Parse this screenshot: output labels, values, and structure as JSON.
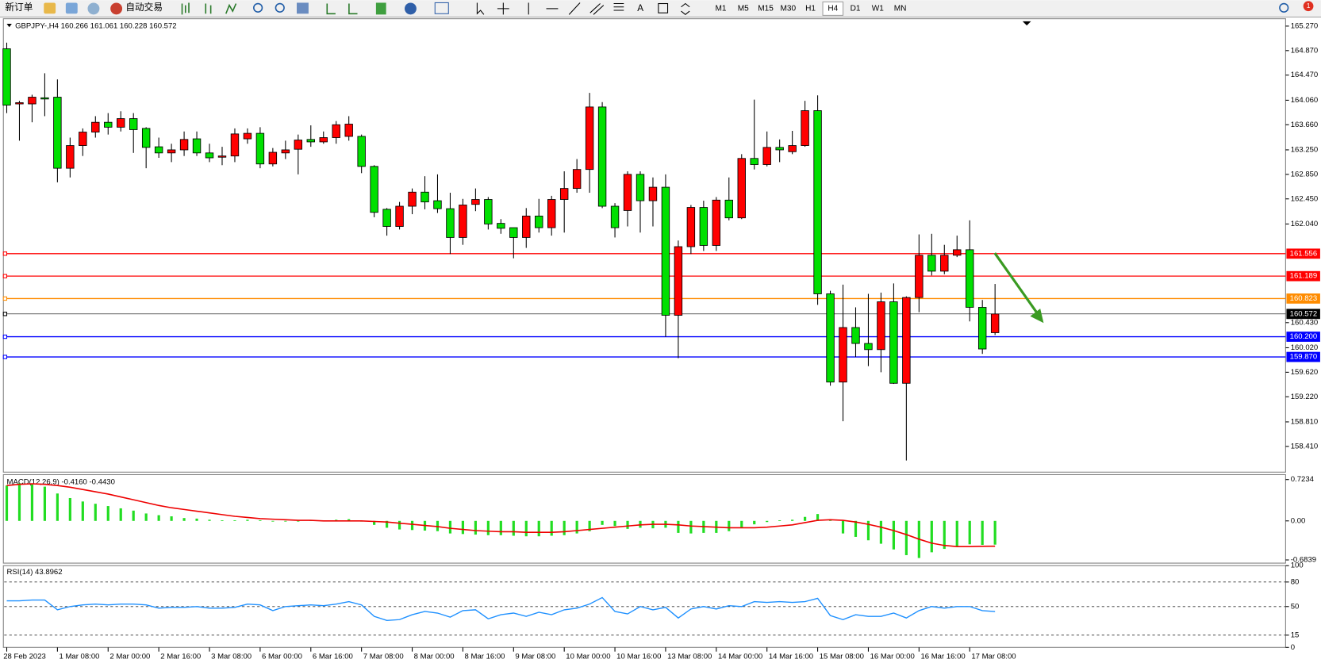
{
  "toolbar": {
    "buttons": [
      "新订单",
      "自动交易"
    ],
    "timeframes": [
      "M1",
      "M5",
      "M15",
      "M30",
      "H1",
      "H4",
      "D1",
      "W1",
      "MN"
    ],
    "notifications": "1"
  },
  "chart_data": [
    {
      "type": "candlestick",
      "title": "GBPJPY-,H4 160.266 161.061 160.228 160.572",
      "up_color": "#ff0000",
      "down_color": "#00e000",
      "open": [
        164.9,
        164.0,
        164.0,
        164.1,
        164.11,
        162.95,
        163.32,
        163.54,
        163.7,
        163.62,
        163.76,
        163.6,
        163.3,
        163.2,
        163.25,
        163.43,
        163.2,
        163.13,
        163.15,
        163.43,
        163.52,
        163.02,
        163.2,
        163.26,
        163.42,
        163.38,
        163.45,
        163.47,
        163.47,
        162.98,
        162.28,
        162.0,
        162.33,
        162.56,
        162.42,
        162.29,
        161.82,
        162.36,
        162.44,
        162.05,
        161.98,
        161.82,
        162.17,
        161.98,
        162.44,
        162.62,
        162.93,
        163.95,
        162.33,
        162.26,
        162.85,
        162.42,
        162.64,
        160.55,
        161.67,
        162.31,
        161.69,
        162.43,
        162.14,
        163.11,
        163.01,
        163.29,
        163.22,
        163.32,
        163.89,
        160.9,
        159.46,
        160.35,
        160.09,
        159.99,
        160.77,
        159.44,
        160.84,
        161.53,
        161.27,
        161.53,
        161.62,
        160.68,
        160.266
      ],
      "high": [
        165.0,
        164.05,
        164.15,
        164.5,
        164.4,
        163.45,
        163.6,
        163.8,
        163.85,
        163.88,
        163.85,
        163.62,
        163.45,
        163.35,
        163.55,
        163.55,
        163.35,
        163.3,
        163.6,
        163.6,
        163.62,
        163.28,
        163.4,
        163.5,
        163.65,
        163.55,
        163.72,
        163.8,
        163.5,
        163.0,
        162.3,
        162.4,
        162.62,
        162.82,
        162.85,
        162.55,
        162.45,
        162.62,
        162.48,
        162.12,
        161.98,
        162.3,
        162.45,
        162.5,
        162.9,
        163.1,
        164.18,
        164.03,
        162.38,
        162.9,
        162.9,
        162.8,
        162.85,
        161.77,
        162.35,
        162.42,
        162.48,
        162.8,
        163.18,
        164.07,
        163.55,
        163.42,
        163.56,
        164.05,
        164.14,
        160.95,
        161.05,
        160.68,
        160.9,
        160.92,
        161.07,
        160.86,
        161.87,
        161.88,
        161.7,
        161.85,
        162.1,
        160.8,
        161.061
      ],
      "low": [
        163.85,
        163.4,
        163.7,
        163.8,
        162.72,
        162.8,
        163.15,
        163.45,
        163.5,
        163.55,
        163.2,
        162.95,
        163.12,
        163.05,
        163.15,
        163.15,
        163.05,
        163.0,
        163.05,
        163.35,
        162.95,
        162.98,
        163.1,
        162.85,
        163.3,
        163.35,
        163.35,
        163.4,
        162.87,
        162.15,
        161.85,
        161.95,
        162.2,
        162.28,
        162.22,
        161.55,
        161.7,
        162.25,
        161.95,
        161.88,
        161.48,
        161.65,
        161.9,
        161.85,
        161.9,
        162.55,
        162.55,
        162.3,
        161.82,
        162.0,
        161.9,
        162.0,
        160.2,
        159.85,
        161.55,
        161.6,
        161.6,
        162.1,
        162.12,
        162.93,
        162.98,
        163.05,
        163.18,
        163.3,
        160.72,
        159.4,
        158.82,
        159.87,
        159.72,
        159.62,
        159.43,
        158.18,
        160.6,
        161.2,
        161.22,
        161.5,
        160.45,
        159.92,
        160.228
      ],
      "close": [
        163.98,
        164.02,
        164.11,
        164.08,
        162.95,
        163.32,
        163.54,
        163.7,
        163.62,
        163.76,
        163.58,
        163.29,
        163.2,
        163.25,
        163.42,
        163.2,
        163.12,
        163.15,
        163.51,
        163.52,
        163.02,
        163.21,
        163.25,
        163.41,
        163.38,
        163.45,
        163.66,
        163.67,
        162.98,
        162.23,
        162.0,
        162.33,
        162.56,
        162.4,
        162.29,
        161.82,
        162.35,
        162.44,
        162.04,
        161.97,
        161.82,
        162.17,
        161.98,
        162.44,
        162.62,
        162.93,
        163.95,
        162.33,
        161.98,
        162.85,
        162.42,
        162.64,
        160.55,
        161.67,
        162.31,
        161.69,
        162.43,
        162.14,
        163.11,
        163.01,
        163.29,
        163.25,
        163.32,
        163.89,
        160.9,
        159.46,
        160.35,
        160.09,
        159.99,
        160.77,
        159.44,
        160.84,
        161.53,
        161.27,
        161.53,
        161.62,
        160.68,
        160.0,
        160.572
      ],
      "ylim": [
        157.99,
        165.39
      ],
      "yticks": [
        {
          "value": 165.27,
          "label": "165.270"
        },
        {
          "value": 164.87,
          "label": "164.870"
        },
        {
          "value": 164.47,
          "label": "164.470"
        },
        {
          "value": 164.06,
          "label": "164.060"
        },
        {
          "value": 163.66,
          "label": "163.660"
        },
        {
          "value": 163.25,
          "label": "163.250"
        },
        {
          "value": 162.85,
          "label": "162.850"
        },
        {
          "value": 162.45,
          "label": "162.450"
        },
        {
          "value": 162.04,
          "label": "162.040"
        },
        {
          "value": 160.43,
          "label": "160.430"
        },
        {
          "value": 160.02,
          "label": "160.020"
        },
        {
          "value": 159.62,
          "label": "159.620"
        },
        {
          "value": 159.22,
          "label": "159.220"
        },
        {
          "value": 158.81,
          "label": "158.810"
        },
        {
          "value": 158.41,
          "label": "158.410"
        }
      ],
      "levels": [
        {
          "value": 161.556,
          "label": "161.556",
          "color": "#ff0000"
        },
        {
          "value": 161.189,
          "label": "161.189",
          "color": "#ff0000"
        },
        {
          "value": 160.823,
          "label": "160.823",
          "color": "#ff8c00"
        },
        {
          "value": 160.572,
          "label": "160.572",
          "color": "#000000"
        },
        {
          "value": 160.2,
          "label": "160.200",
          "color": "#0000ff"
        },
        {
          "value": 159.87,
          "label": "159.870",
          "color": "#0000ff"
        }
      ],
      "x_labels": [
        "28 Feb 2023",
        "1 Mar 08:00",
        "2 Mar 00:00",
        "2 Mar 16:00",
        "3 Mar 08:00",
        "6 Mar 00:00",
        "6 Mar 16:00",
        "7 Mar 08:00",
        "8 Mar 00:00",
        "8 Mar 16:00",
        "9 Mar 08:00",
        "10 Mar 00:00",
        "10 Mar 16:00",
        "13 Mar 08:00",
        "14 Mar 00:00",
        "14 Mar 16:00",
        "15 Mar 08:00",
        "16 Mar 00:00",
        "16 Mar 16:00",
        "17 Mar 08:00"
      ]
    },
    {
      "type": "macd",
      "title": "MACD(12,26,9) -0.4160 -0.4430",
      "histogram": {
        "color": "#22dd22",
        "values": [
          0.62,
          0.66,
          0.64,
          0.6,
          0.48,
          0.4,
          0.34,
          0.3,
          0.26,
          0.22,
          0.18,
          0.13,
          0.1,
          0.08,
          0.05,
          0.04,
          0.02,
          0.01,
          0.01,
          0.02,
          0.01,
          -0.01,
          -0.01,
          0.0,
          0.01,
          0.01,
          0.02,
          0.03,
          0.0,
          -0.07,
          -0.12,
          -0.15,
          -0.16,
          -0.17,
          -0.18,
          -0.22,
          -0.23,
          -0.24,
          -0.25,
          -0.25,
          -0.26,
          -0.27,
          -0.27,
          -0.26,
          -0.25,
          -0.22,
          -0.18,
          -0.07,
          -0.09,
          -0.14,
          -0.12,
          -0.13,
          -0.12,
          -0.21,
          -0.22,
          -0.21,
          -0.21,
          -0.18,
          -0.12,
          -0.06,
          -0.02,
          0.01,
          0.02,
          0.07,
          0.12,
          0.03,
          -0.22,
          -0.28,
          -0.34,
          -0.4,
          -0.5,
          -0.6,
          -0.65,
          -0.55,
          -0.49,
          -0.44,
          -0.41,
          -0.42,
          -0.416
        ]
      },
      "signal": {
        "color": "#ee0000",
        "values": [
          0.62,
          0.64,
          0.65,
          0.64,
          0.62,
          0.59,
          0.55,
          0.51,
          0.47,
          0.42,
          0.37,
          0.32,
          0.27,
          0.23,
          0.2,
          0.17,
          0.14,
          0.11,
          0.08,
          0.06,
          0.04,
          0.03,
          0.02,
          0.01,
          0.01,
          0.0,
          0.0,
          0.0,
          0.0,
          -0.01,
          -0.02,
          -0.04,
          -0.06,
          -0.08,
          -0.1,
          -0.13,
          -0.15,
          -0.17,
          -0.18,
          -0.19,
          -0.19,
          -0.2,
          -0.2,
          -0.2,
          -0.19,
          -0.17,
          -0.15,
          -0.13,
          -0.11,
          -0.09,
          -0.07,
          -0.06,
          -0.06,
          -0.07,
          -0.09,
          -0.1,
          -0.11,
          -0.12,
          -0.12,
          -0.12,
          -0.11,
          -0.09,
          -0.07,
          -0.03,
          0.01,
          0.02,
          0.01,
          -0.02,
          -0.06,
          -0.11,
          -0.17,
          -0.24,
          -0.32,
          -0.39,
          -0.43,
          -0.45,
          -0.45,
          -0.445,
          -0.443
        ]
      },
      "ylim": [
        -0.74,
        0.81
      ],
      "yticks": [
        0.7234,
        {
          "value": 0,
          "label": "0.00"
        },
        -0.6839
      ]
    },
    {
      "type": "line",
      "title": "RSI(14) 43.8962",
      "color": "#1e90ff",
      "values": [
        57,
        57,
        58,
        58,
        46,
        50,
        52,
        53,
        52,
        53,
        53,
        52,
        48,
        49,
        49,
        50,
        48,
        48,
        49,
        53,
        52,
        45,
        50,
        51,
        52,
        51,
        53,
        56,
        52,
        38,
        33,
        34,
        40,
        44,
        42,
        37,
        45,
        46,
        35,
        40,
        42,
        38,
        43,
        40,
        46,
        48,
        53,
        61,
        44,
        41,
        50,
        46,
        49,
        36,
        47,
        50,
        47,
        51,
        50,
        56,
        55,
        56,
        55,
        56,
        60,
        39,
        34,
        40,
        38,
        38,
        42,
        36,
        45,
        50,
        48,
        50,
        50,
        45,
        43.8962
      ],
      "ylim": [
        0,
        100
      ],
      "yticks": [
        100,
        80,
        50,
        15,
        0
      ]
    }
  ]
}
